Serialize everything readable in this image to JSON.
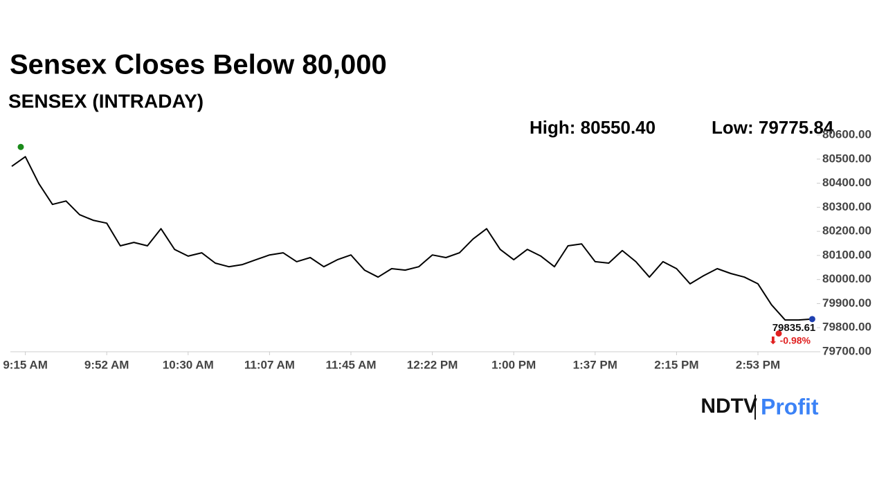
{
  "chart_data": {
    "type": "line",
    "title": "Sensex Closes Below 80,000",
    "subtitle": "SENSEX (INTRADAY)",
    "annotations": [
      "High: 80550.40",
      "Low: 79775.84"
    ],
    "high": 80550.4,
    "low": 79775.84,
    "last_label": "79835.61",
    "change_label": "⬇ -0.98%",
    "logo": [
      "NDTV",
      "Profit"
    ],
    "categories": [
      null,
      "9:15 AM",
      null,
      null,
      null,
      null,
      null,
      "9:52 AM",
      null,
      null,
      null,
      null,
      null,
      "10:30 AM",
      null,
      null,
      null,
      null,
      null,
      "11:07 AM",
      null,
      null,
      null,
      null,
      null,
      "11:45 AM",
      null,
      null,
      null,
      null,
      null,
      "12:22 PM",
      null,
      null,
      null,
      null,
      null,
      "1:00 PM",
      null,
      null,
      null,
      null,
      null,
      "1:37 PM",
      null,
      null,
      null,
      null,
      null,
      "2:15 PM",
      null,
      null,
      null,
      null,
      null,
      "2:53 PM",
      null,
      null,
      null,
      null
    ],
    "series": [
      {
        "name": "SENSEX",
        "color": "#000000",
        "values": [
          80470,
          80510,
          80398,
          80312,
          80326,
          80269,
          80246,
          80234,
          80140,
          80154,
          80140,
          80211,
          80125,
          80097,
          80111,
          80068,
          80053,
          80062,
          80082,
          80102,
          80111,
          80074,
          80091,
          80053,
          80082,
          80102,
          80039,
          80010,
          80045,
          80039,
          80053,
          80102,
          80091,
          80111,
          80168,
          80211,
          80125,
          80082,
          80125,
          80097,
          80053,
          80140,
          80148,
          80074,
          80068,
          80120,
          80074,
          80010,
          80074,
          80045,
          79982,
          80016,
          80045,
          80025,
          80010,
          79982,
          79895,
          79832,
          79832,
          79835.61
        ]
      }
    ],
    "ylim": [
      79700,
      80600
    ],
    "yticks": [
      {
        "value": 79700,
        "label": "79700.00"
      },
      {
        "value": 79800,
        "label": "79800.00"
      },
      {
        "value": 79900,
        "label": "79900.00"
      },
      {
        "value": 80000,
        "label": "80000.00"
      },
      {
        "value": 80100,
        "label": "80100.00"
      },
      {
        "value": 80200,
        "label": "80200.00"
      },
      {
        "value": 80300,
        "label": "80300.00"
      },
      {
        "value": 80400,
        "label": "80400.00"
      },
      {
        "value": 80500,
        "label": "80500.00"
      },
      {
        "value": 80600,
        "label": "80600.00"
      }
    ],
    "grid": false
  }
}
